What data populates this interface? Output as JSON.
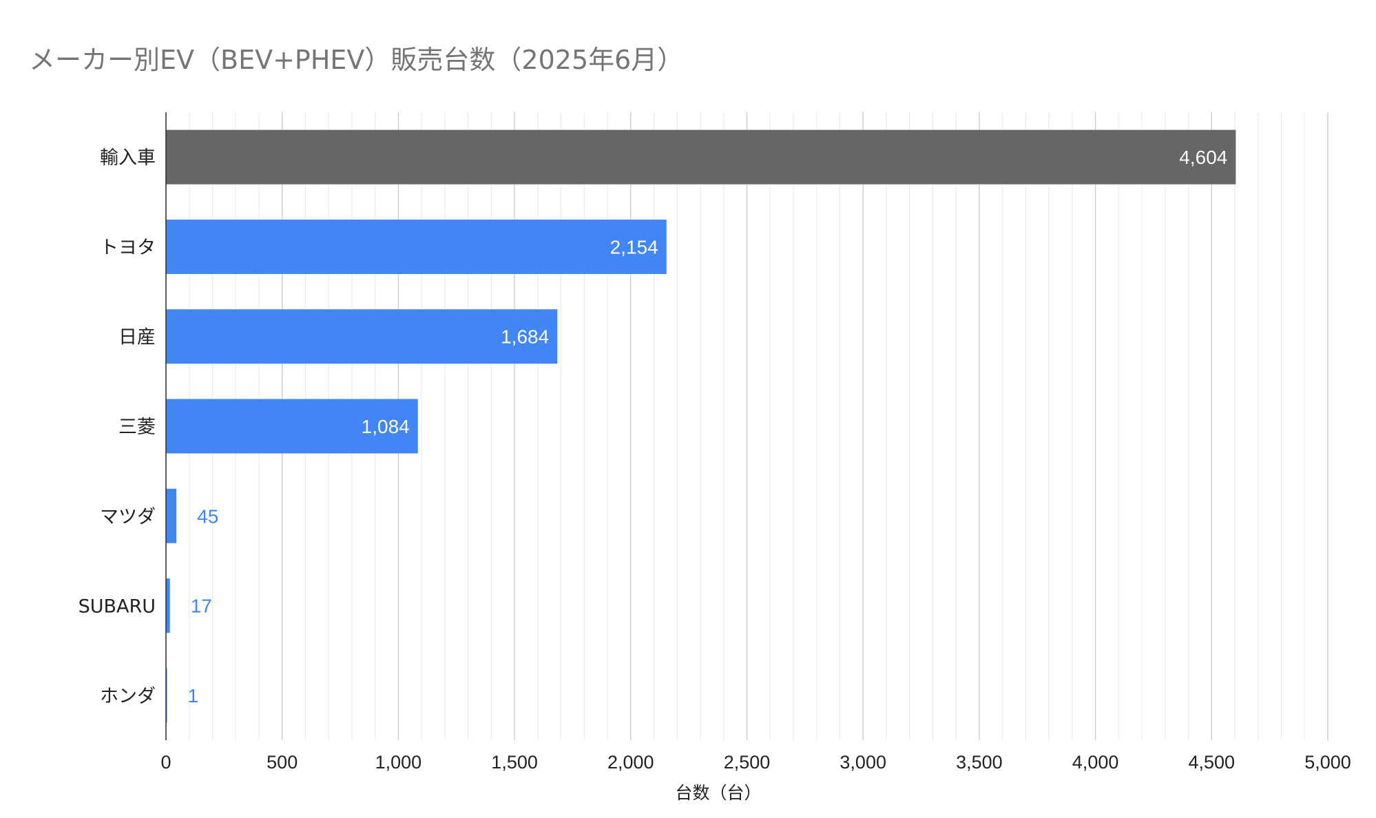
{
  "chart_data": {
    "type": "bar",
    "orientation": "horizontal",
    "title": "メーカー別EV（BEV+PHEV）販売台数（2025年6月）",
    "xlabel": "台数（台）",
    "ylabel": "",
    "categories": [
      "輸入車",
      "トヨタ",
      "日産",
      "三菱",
      "マツダ",
      "SUBARU",
      "ホンダ"
    ],
    "values": [
      4604,
      2154,
      1684,
      1084,
      45,
      17,
      1
    ],
    "data_labels": [
      "4,604",
      "2,154",
      "1,684",
      "1,084",
      "45",
      "17",
      "1"
    ],
    "bar_colors": [
      "#666666",
      "#4285f4",
      "#4285f4",
      "#4285f4",
      "#4285f4",
      "#4285f4",
      "#4285f4"
    ],
    "xlim": [
      0,
      5000
    ],
    "x_ticks": [
      0,
      500,
      1000,
      1500,
      2000,
      2500,
      3000,
      3500,
      4000,
      4500,
      5000
    ],
    "x_tick_labels": [
      "0",
      "500",
      "1,000",
      "1,500",
      "2,000",
      "2,500",
      "3,000",
      "3,500",
      "4,000",
      "4,500",
      "5,000"
    ],
    "minor_grid_step": 100,
    "grid": true,
    "legend": "none",
    "colors": {
      "major_grid": "#cccccc",
      "minor_grid": "#ebebeb",
      "axis": "#333333",
      "label_inside": "#ffffff",
      "label_outside": "#4285f4"
    }
  }
}
